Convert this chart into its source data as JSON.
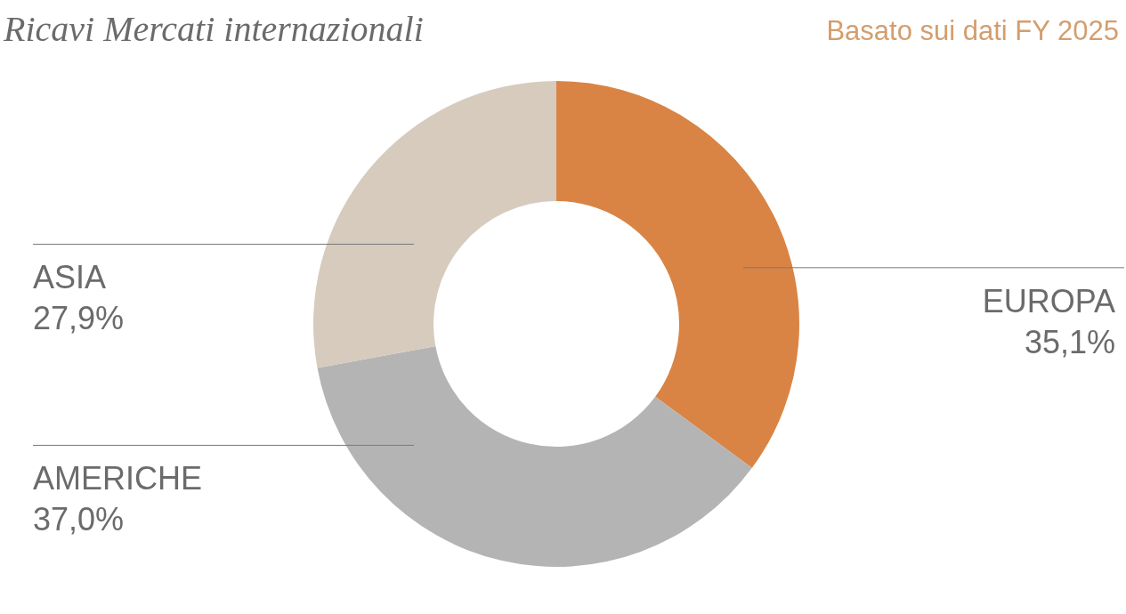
{
  "chart_data": {
    "type": "donut",
    "title": "Ricavi Mercati internazionali",
    "subtitle": "Basato sui dati FY 2025",
    "categories": [
      "EUROPA",
      "AMERICHE",
      "ASIA"
    ],
    "values": [
      35.1,
      37.0,
      27.9
    ],
    "colors": [
      "#d98444",
      "#b4b4b4",
      "#d6cbbd"
    ],
    "value_labels": [
      "35,1%",
      "37,0%",
      "27,9%"
    ]
  }
}
